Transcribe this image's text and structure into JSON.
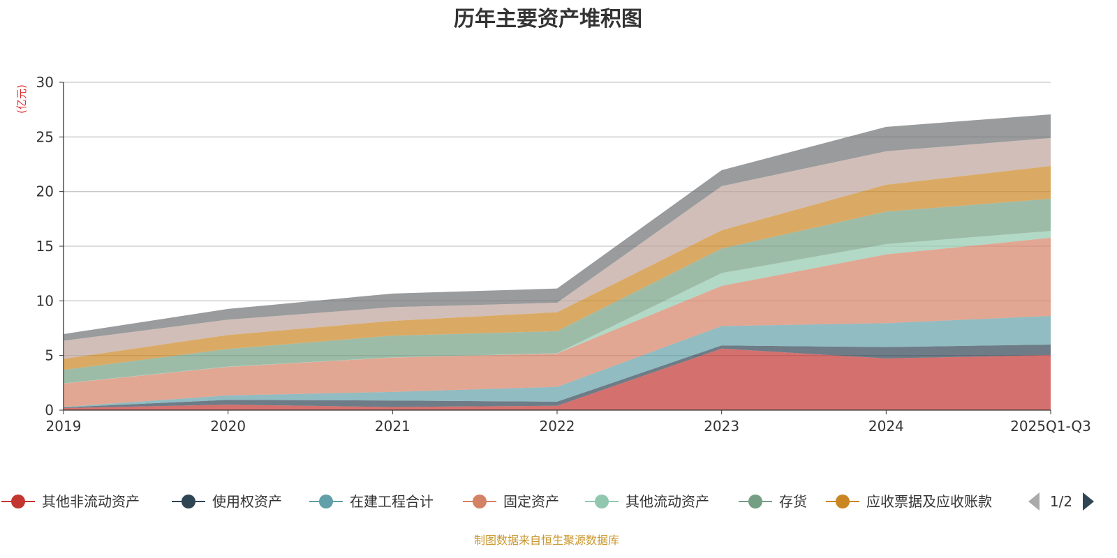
{
  "chart_data": {
    "type": "area",
    "stacked": true,
    "title": "历年主要资产堆积图",
    "ylabel": "(亿元)",
    "xlabel": "",
    "ylim": [
      0,
      30
    ],
    "yticks": [
      0,
      5,
      10,
      15,
      20,
      25,
      30
    ],
    "grid": true,
    "categories": [
      "2019",
      "2020",
      "2021",
      "2022",
      "2023",
      "2024",
      "2025Q1-Q3"
    ],
    "series": [
      {
        "name": "其他非流动资产",
        "color": "#c23531",
        "values": [
          0.19,
          0.5,
          0.29,
          0.4,
          5.63,
          4.73,
          5.04
        ]
      },
      {
        "name": "使用权资产",
        "color": "#2f4554",
        "values": [
          0.06,
          0.44,
          0.59,
          0.37,
          0.29,
          1.04,
          0.96
        ]
      },
      {
        "name": "在建工程合计",
        "color": "#61a0a8",
        "values": [
          0.04,
          0.41,
          0.79,
          1.36,
          1.77,
          2.19,
          2.62
        ]
      },
      {
        "name": "固定资产",
        "color": "#d48265",
        "values": [
          2.15,
          2.61,
          3.14,
          3.06,
          3.68,
          6.29,
          7.15
        ]
      },
      {
        "name": "其他流动资产",
        "color": "#91c7ae",
        "values": [
          0.02,
          0.02,
          0.02,
          0.02,
          1.17,
          0.94,
          0.63
        ]
      },
      {
        "name": "存货",
        "color": "#749f83",
        "values": [
          1.23,
          1.62,
          1.98,
          2.02,
          2.25,
          2.98,
          2.94
        ]
      },
      {
        "name": "应收票据及应收账款",
        "color": "#ca8622",
        "values": [
          1.0,
          1.28,
          1.36,
          1.73,
          1.67,
          2.46,
          3.0
        ]
      },
      {
        "name": "",
        "color": "#bda29a",
        "values": [
          1.66,
          1.4,
          1.25,
          0.87,
          4.04,
          3.06,
          2.56
        ]
      },
      {
        "name": "",
        "color": "#6e7074",
        "values": [
          0.61,
          0.98,
          1.25,
          1.3,
          1.46,
          2.23,
          2.16
        ]
      }
    ],
    "legend": {
      "placement": "bottom",
      "page": "1/2"
    }
  },
  "footer": "制图数据来自恒生聚源数据库"
}
